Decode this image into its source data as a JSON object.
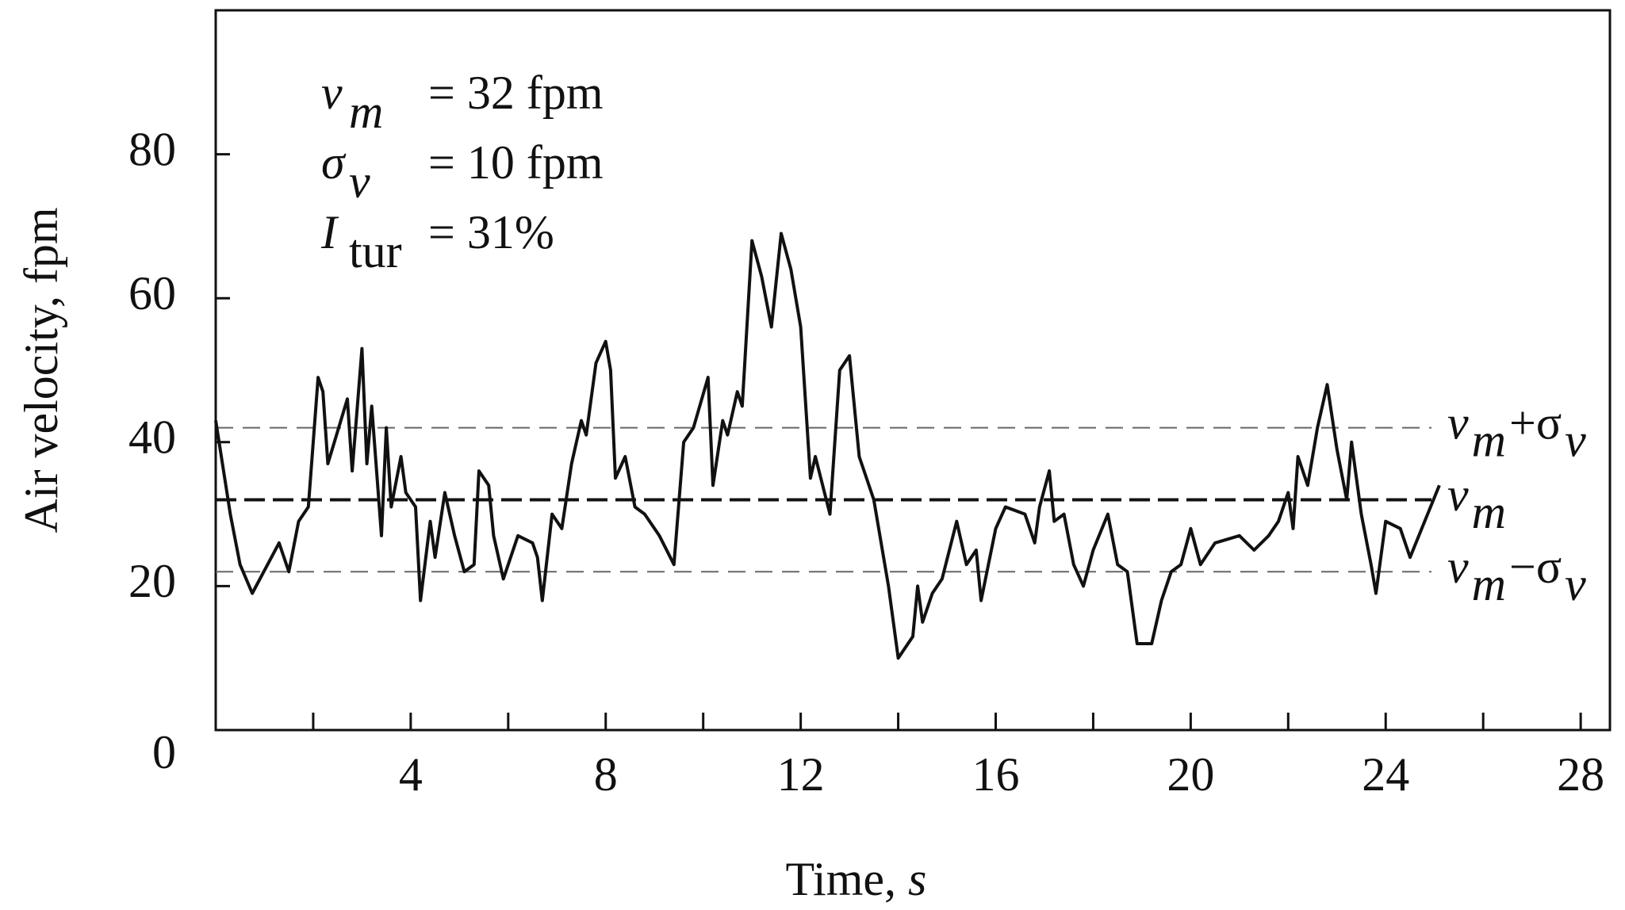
{
  "chart_data": {
    "type": "line",
    "ylabel": "Air velocity, fpm",
    "xlabel": {
      "text": "Time,",
      "variable": "s"
    },
    "color": "#111111",
    "xlim": [
      0,
      28.6
    ],
    "ylim": [
      0,
      100
    ],
    "xticks": [
      4,
      8,
      12,
      16,
      20,
      24,
      28
    ],
    "xminorticks": [
      2,
      6,
      10,
      14,
      18,
      22,
      26
    ],
    "yticks": [
      0,
      20,
      40,
      60,
      80
    ],
    "annotations": [
      {
        "symbol": "v",
        "subscript": "m",
        "text": "= 32 fpm"
      },
      {
        "symbol": "σ",
        "subscript": "v",
        "text": "= 10 fpm"
      },
      {
        "symbol": "I",
        "subscript": "tur",
        "text": "= 31%"
      }
    ],
    "reference_lines": [
      {
        "value": 42,
        "style": "light",
        "label_parts": [
          "v",
          "m",
          "+σ",
          "v"
        ]
      },
      {
        "value": 32,
        "style": "dark",
        "label_parts": [
          "v",
          "m"
        ]
      },
      {
        "value": 22,
        "style": "light",
        "label_parts": [
          "v",
          "m",
          "−σ",
          "v"
        ]
      }
    ],
    "x": [
      0,
      0.3,
      0.5,
      0.75,
      1.3,
      1.5,
      1.7,
      1.9,
      2.1,
      2.2,
      2.3,
      2.7,
      2.8,
      3.0,
      3.1,
      3.2,
      3.4,
      3.5,
      3.6,
      3.8,
      3.9,
      4.1,
      4.2,
      4.4,
      4.5,
      4.7,
      4.9,
      5.1,
      5.3,
      5.4,
      5.6,
      5.7,
      5.9,
      6.2,
      6.5,
      6.6,
      6.7,
      6.9,
      7.1,
      7.3,
      7.5,
      7.6,
      7.8,
      8.0,
      8.1,
      8.2,
      8.4,
      8.6,
      8.8,
      9.1,
      9.4,
      9.6,
      9.8,
      10.1,
      10.2,
      10.4,
      10.5,
      10.7,
      10.8,
      11.0,
      11.2,
      11.4,
      11.6,
      11.8,
      12.0,
      12.2,
      12.3,
      12.6,
      12.8,
      13.0,
      13.2,
      13.5,
      13.8,
      14.0,
      14.3,
      14.4,
      14.5,
      14.7,
      14.9,
      15.2,
      15.4,
      15.6,
      15.7,
      16.0,
      16.2,
      16.6,
      16.8,
      16.9,
      17.1,
      17.2,
      17.4,
      17.6,
      17.8,
      18.0,
      18.3,
      18.5,
      18.7,
      18.9,
      19.2,
      19.4,
      19.6,
      19.8,
      20.0,
      20.2,
      20.5,
      21.0,
      21.3,
      21.6,
      21.8,
      22.0,
      22.1,
      22.2,
      22.4,
      22.6,
      22.8,
      23.0,
      23.2,
      23.3,
      23.5,
      23.7,
      23.8,
      24.0,
      24.3,
      24.5,
      24.8,
      25.1
    ],
    "values": [
      43,
      30,
      23,
      19,
      26,
      22,
      29,
      31,
      49,
      47,
      37,
      46,
      36,
      53,
      37,
      45,
      27,
      42,
      31,
      38,
      33,
      31,
      18,
      29,
      24,
      33,
      27,
      22,
      23,
      36,
      34,
      27,
      21,
      27,
      26,
      24,
      18,
      30,
      28,
      37,
      43,
      41,
      51,
      54,
      50,
      35,
      38,
      31,
      30,
      27,
      23,
      40,
      42,
      49,
      34,
      43,
      41,
      47,
      45,
      68,
      63,
      56,
      69,
      64,
      56,
      35,
      38,
      30,
      50,
      52,
      38,
      32,
      20,
      10,
      13,
      20,
      15,
      19,
      21,
      29,
      23,
      25,
      18,
      28,
      31,
      30,
      26,
      31,
      36,
      29,
      30,
      23,
      20,
      25,
      30,
      23,
      22,
      12,
      12,
      18,
      22,
      23,
      28,
      23,
      26,
      27,
      25,
      27,
      29,
      33,
      28,
      38,
      34,
      42,
      48,
      39,
      32,
      40,
      30,
      23,
      19,
      29,
      28,
      24,
      29,
      34
    ]
  }
}
